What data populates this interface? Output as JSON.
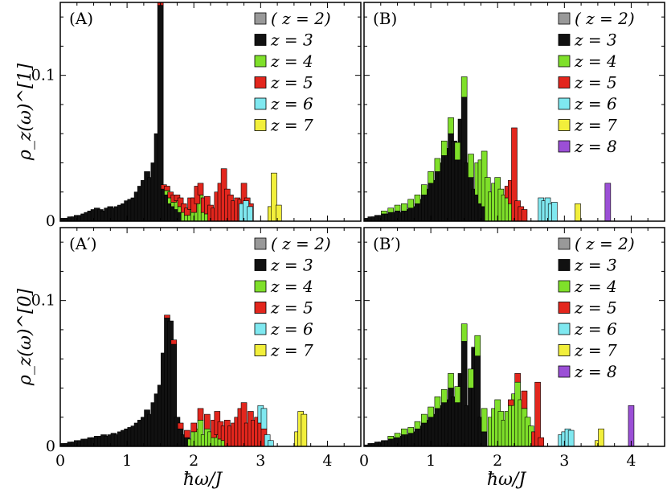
{
  "chart_data": [
    {
      "panel": "A",
      "type": "bar",
      "stacked": true,
      "title": "(A)",
      "ylabel": "ρ_z(ω)^[1]",
      "xlabel": "",
      "xlim": [
        0,
        4.5
      ],
      "ylim": [
        0,
        0.15
      ],
      "xticks": [],
      "yticks": [
        {
          "v": 0,
          "label": "0"
        },
        {
          "v": 0.1,
          "label": "0.1"
        }
      ],
      "legend": [
        {
          "label": "(  z = 2)",
          "color": "#999999"
        },
        {
          "label": "z = 3",
          "color": "#111111"
        },
        {
          "label": "z = 4",
          "color": "#7fe02a"
        },
        {
          "label": "z = 5",
          "color": "#e3261d"
        },
        {
          "label": "z = 6",
          "color": "#7fe8f0"
        },
        {
          "label": "z = 7",
          "color": "#f2ef3b"
        }
      ],
      "series": [
        {
          "name": "z = 3",
          "color": "#111111",
          "x": [
            0.05,
            0.1,
            0.15,
            0.2,
            0.25,
            0.3,
            0.35,
            0.4,
            0.45,
            0.5,
            0.55,
            0.6,
            0.65,
            0.7,
            0.75,
            0.8,
            0.85,
            0.9,
            0.95,
            1.0,
            1.05,
            1.1,
            1.15,
            1.2,
            1.25,
            1.3,
            1.35,
            1.4,
            1.45,
            1.5,
            1.55,
            1.6,
            1.65,
            1.7,
            1.75,
            1.8
          ],
          "values": [
            0.002,
            0.002,
            0.003,
            0.003,
            0.004,
            0.004,
            0.005,
            0.006,
            0.007,
            0.008,
            0.009,
            0.008,
            0.007,
            0.009,
            0.01,
            0.009,
            0.01,
            0.011,
            0.012,
            0.014,
            0.015,
            0.016,
            0.02,
            0.024,
            0.028,
            0.034,
            0.03,
            0.04,
            0.06,
            0.148,
            0.022,
            0.018,
            0.012,
            0.01,
            0.008,
            0.006
          ]
        },
        {
          "name": "z = 4",
          "color": "#7fe02a",
          "x": [
            1.6,
            1.65,
            1.7,
            1.75,
            1.8,
            1.85,
            1.9,
            1.95,
            2.0,
            2.05,
            2.1,
            2.15,
            2.2
          ],
          "values": [
            0.003,
            0.004,
            0.003,
            0.006,
            0.004,
            0.006,
            0.004,
            0.008,
            0.006,
            0.012,
            0.018,
            0.006,
            0.005
          ]
        },
        {
          "name": "z = 5",
          "color": "#e3261d",
          "x": [
            1.5,
            1.55,
            1.6,
            1.65,
            1.7,
            1.75,
            1.8,
            1.85,
            1.9,
            1.95,
            2.0,
            2.05,
            2.1,
            2.15,
            2.2,
            2.25,
            2.3,
            2.35,
            2.4,
            2.45,
            2.5,
            2.55,
            2.6,
            2.65,
            2.7,
            2.75,
            2.8,
            2.85
          ],
          "values": [
            0.002,
            0.003,
            0.003,
            0.004,
            0.005,
            0.004,
            0.006,
            0.006,
            0.005,
            0.008,
            0.01,
            0.012,
            0.008,
            0.01,
            0.012,
            0.011,
            0.009,
            0.02,
            0.026,
            0.036,
            0.022,
            0.018,
            0.014,
            0.016,
            0.015,
            0.026,
            0.016,
            0.012
          ]
        },
        {
          "name": "z = 6",
          "color": "#7fe8f0",
          "x": [
            2.72,
            2.78,
            2.84
          ],
          "values": [
            0.012,
            0.014,
            0.01
          ]
        },
        {
          "name": "z = 7",
          "color": "#f2ef3b",
          "x": [
            3.15,
            3.2,
            3.27
          ],
          "values": [
            0.01,
            0.033,
            0.011
          ]
        }
      ]
    },
    {
      "panel": "B",
      "type": "bar",
      "stacked": true,
      "title": "(B)",
      "ylabel": "",
      "xlabel": "",
      "xlim": [
        0,
        4.5
      ],
      "ylim": [
        0,
        0.15
      ],
      "xticks": [],
      "yticks": [],
      "legend": [
        {
          "label": "(  z = 2)",
          "color": "#999999"
        },
        {
          "label": "z = 3",
          "color": "#111111"
        },
        {
          "label": "z = 4",
          "color": "#7fe02a"
        },
        {
          "label": "z = 5",
          "color": "#e3261d"
        },
        {
          "label": "z = 6",
          "color": "#7fe8f0"
        },
        {
          "label": "z = 7",
          "color": "#f2ef3b"
        },
        {
          "label": "z = 8",
          "color": "#9b4fd6"
        }
      ],
      "series": [
        {
          "name": "z = 3",
          "color": "#111111",
          "x": [
            0.05,
            0.1,
            0.15,
            0.2,
            0.25,
            0.3,
            0.35,
            0.4,
            0.45,
            0.5,
            0.55,
            0.6,
            0.65,
            0.7,
            0.75,
            0.8,
            0.85,
            0.9,
            0.95,
            1.0,
            1.05,
            1.1,
            1.15,
            1.2,
            1.25,
            1.3,
            1.35,
            1.4,
            1.45,
            1.5,
            1.55,
            1.6,
            1.65,
            1.7,
            1.75,
            1.8
          ],
          "values": [
            0.002,
            0.003,
            0.003,
            0.004,
            0.004,
            0.005,
            0.005,
            0.006,
            0.006,
            0.007,
            0.006,
            0.007,
            0.008,
            0.009,
            0.01,
            0.012,
            0.015,
            0.018,
            0.022,
            0.026,
            0.028,
            0.034,
            0.04,
            0.045,
            0.05,
            0.06,
            0.055,
            0.042,
            0.07,
            0.085,
            0.04,
            0.03,
            0.022,
            0.018,
            0.012,
            0.01
          ]
        },
        {
          "name": "z = 4",
          "color": "#7fe02a",
          "x": [
            0.3,
            0.4,
            0.5,
            0.6,
            0.7,
            0.8,
            0.9,
            1.0,
            1.1,
            1.2,
            1.3,
            1.4,
            1.5,
            1.6,
            1.7,
            1.75,
            1.8,
            1.85,
            1.9,
            1.95,
            2.0,
            2.05,
            2.1,
            2.15,
            2.2
          ],
          "values": [
            0.002,
            0.003,
            0.004,
            0.005,
            0.006,
            0.006,
            0.007,
            0.008,
            0.009,
            0.01,
            0.011,
            0.012,
            0.014,
            0.016,
            0.022,
            0.03,
            0.038,
            0.03,
            0.02,
            0.026,
            0.03,
            0.022,
            0.018,
            0.016,
            0.012
          ]
        },
        {
          "name": "z = 5",
          "color": "#e3261d",
          "x": [
            2.15,
            2.2,
            2.25,
            2.3,
            2.35,
            2.4
          ],
          "values": [
            0.008,
            0.016,
            0.064,
            0.014,
            0.01,
            0.008
          ]
        },
        {
          "name": "z = 6",
          "color": "#7fe8f0",
          "x": [
            2.65,
            2.7,
            2.75,
            2.8,
            2.85
          ],
          "values": [
            0.016,
            0.014,
            0.016,
            0.012,
            0.013
          ]
        },
        {
          "name": "z = 7",
          "color": "#f2ef3b",
          "x": [
            3.2
          ],
          "values": [
            0.012
          ]
        },
        {
          "name": "z = 8",
          "color": "#9b4fd6",
          "x": [
            3.65
          ],
          "values": [
            0.026
          ]
        }
      ]
    },
    {
      "panel": "A'",
      "type": "bar",
      "stacked": true,
      "title": "(A′)",
      "ylabel": "ρ_z(ω)^[0]",
      "xlabel": "ħω/J",
      "xlim": [
        0,
        4.5
      ],
      "ylim": [
        0,
        0.15
      ],
      "xticks": [
        {
          "v": 0,
          "label": "0"
        },
        {
          "v": 1,
          "label": "1"
        },
        {
          "v": 2,
          "label": "2"
        },
        {
          "v": 3,
          "label": "3"
        },
        {
          "v": 4,
          "label": "4"
        }
      ],
      "yticks": [
        {
          "v": 0,
          "label": "0"
        },
        {
          "v": 0.1,
          "label": "0.1"
        }
      ],
      "legend": [
        {
          "label": "(  z = 2)",
          "color": "#999999"
        },
        {
          "label": "z = 3",
          "color": "#111111"
        },
        {
          "label": "z = 4",
          "color": "#7fe02a"
        },
        {
          "label": "z = 5",
          "color": "#e3261d"
        },
        {
          "label": "z = 6",
          "color": "#7fe8f0"
        },
        {
          "label": "z = 7",
          "color": "#f2ef3b"
        }
      ],
      "series": [
        {
          "name": "z = 3",
          "color": "#111111",
          "x": [
            0.05,
            0.1,
            0.15,
            0.2,
            0.25,
            0.3,
            0.35,
            0.4,
            0.45,
            0.5,
            0.55,
            0.6,
            0.65,
            0.7,
            0.75,
            0.8,
            0.85,
            0.9,
            0.95,
            1.0,
            1.05,
            1.1,
            1.15,
            1.2,
            1.25,
            1.3,
            1.35,
            1.4,
            1.45,
            1.5,
            1.55,
            1.6,
            1.65,
            1.7,
            1.75,
            1.8,
            1.85,
            1.9
          ],
          "values": [
            0.002,
            0.002,
            0.003,
            0.003,
            0.004,
            0.004,
            0.005,
            0.005,
            0.006,
            0.006,
            0.007,
            0.007,
            0.008,
            0.007,
            0.008,
            0.009,
            0.008,
            0.01,
            0.011,
            0.012,
            0.013,
            0.014,
            0.016,
            0.018,
            0.02,
            0.025,
            0.022,
            0.03,
            0.036,
            0.042,
            0.064,
            0.088,
            0.086,
            0.07,
            0.02,
            0.012,
            0.008,
            0.006
          ]
        },
        {
          "name": "z = 4",
          "color": "#7fe02a",
          "x": [
            1.95,
            2.0,
            2.05,
            2.1,
            2.15,
            2.2,
            2.25,
            2.3,
            2.35,
            2.4,
            2.45
          ],
          "values": [
            0.005,
            0.01,
            0.012,
            0.018,
            0.008,
            0.012,
            0.01,
            0.006,
            0.008,
            0.005,
            0.004
          ]
        },
        {
          "name": "z = 5",
          "color": "#e3261d",
          "x": [
            1.6,
            1.7,
            1.8,
            1.9,
            2.0,
            2.1,
            2.2,
            2.3,
            2.35,
            2.4,
            2.45,
            2.5,
            2.55,
            2.6,
            2.65,
            2.7,
            2.75,
            2.8,
            2.85,
            2.9,
            2.95,
            3.0,
            3.05
          ],
          "values": [
            0.002,
            0.003,
            0.004,
            0.005,
            0.006,
            0.008,
            0.01,
            0.012,
            0.016,
            0.012,
            0.01,
            0.018,
            0.014,
            0.016,
            0.02,
            0.026,
            0.03,
            0.016,
            0.024,
            0.018,
            0.02,
            0.016,
            0.012
          ]
        },
        {
          "name": "z = 6",
          "color": "#7fe8f0",
          "x": [
            3.0,
            3.05,
            3.1,
            3.15
          ],
          "values": [
            0.012,
            0.014,
            0.008,
            0.004
          ]
        },
        {
          "name": "z = 7",
          "color": "#f2ef3b",
          "x": [
            3.55,
            3.6,
            3.65
          ],
          "values": [
            0.01,
            0.024,
            0.022
          ]
        }
      ]
    },
    {
      "panel": "B'",
      "type": "bar",
      "stacked": true,
      "title": "(B′)",
      "ylabel": "",
      "xlabel": "ħω/J",
      "xlim": [
        0,
        4.5
      ],
      "ylim": [
        0,
        0.15
      ],
      "xticks": [
        {
          "v": 0,
          "label": "0"
        },
        {
          "v": 1,
          "label": "1"
        },
        {
          "v": 2,
          "label": "2"
        },
        {
          "v": 3,
          "label": "3"
        },
        {
          "v": 4,
          "label": "4"
        }
      ],
      "yticks": [],
      "legend": [
        {
          "label": "(  z = 2)",
          "color": "#999999"
        },
        {
          "label": "z = 3",
          "color": "#111111"
        },
        {
          "label": "z = 4",
          "color": "#7fe02a"
        },
        {
          "label": "z = 5",
          "color": "#e3261d"
        },
        {
          "label": "z = 6",
          "color": "#7fe8f0"
        },
        {
          "label": "z = 7",
          "color": "#f2ef3b"
        },
        {
          "label": "z = 8",
          "color": "#9b4fd6"
        }
      ],
      "series": [
        {
          "name": "z = 3",
          "color": "#111111",
          "x": [
            0.05,
            0.1,
            0.15,
            0.2,
            0.25,
            0.3,
            0.35,
            0.4,
            0.45,
            0.5,
            0.55,
            0.6,
            0.65,
            0.7,
            0.75,
            0.8,
            0.85,
            0.9,
            0.95,
            1.0,
            1.05,
            1.1,
            1.15,
            1.2,
            1.25,
            1.3,
            1.35,
            1.4,
            1.45,
            1.5,
            1.55,
            1.6,
            1.65,
            1.7,
            1.75,
            1.8
          ],
          "values": [
            0.001,
            0.002,
            0.002,
            0.003,
            0.003,
            0.004,
            0.004,
            0.005,
            0.006,
            0.006,
            0.007,
            0.008,
            0.008,
            0.009,
            0.01,
            0.012,
            0.014,
            0.016,
            0.018,
            0.02,
            0.022,
            0.026,
            0.028,
            0.03,
            0.032,
            0.04,
            0.034,
            0.03,
            0.05,
            0.072,
            0.028,
            0.04,
            0.068,
            0.062,
            0.02,
            0.01
          ]
        },
        {
          "name": "z = 4",
          "color": "#7fe02a",
          "x": [
            0.4,
            0.5,
            0.6,
            0.7,
            0.8,
            0.9,
            1.0,
            1.1,
            1.2,
            1.3,
            1.4,
            1.5,
            1.6,
            1.7,
            1.8,
            1.9,
            1.95,
            2.0,
            2.05,
            2.1,
            2.15,
            2.2,
            2.25,
            2.3,
            2.35,
            2.4,
            2.45,
            2.5
          ],
          "values": [
            0.002,
            0.003,
            0.004,
            0.004,
            0.005,
            0.006,
            0.007,
            0.008,
            0.009,
            0.01,
            0.011,
            0.012,
            0.013,
            0.014,
            0.016,
            0.02,
            0.026,
            0.032,
            0.024,
            0.018,
            0.024,
            0.028,
            0.036,
            0.044,
            0.032,
            0.026,
            0.02,
            0.014
          ]
        },
        {
          "name": "z = 5",
          "color": "#e3261d",
          "x": [
            2.2,
            2.3,
            2.4,
            2.55,
            2.6,
            2.65
          ],
          "values": [
            0.004,
            0.006,
            0.012,
            0.01,
            0.044,
            0.006
          ]
        },
        {
          "name": "z = 6",
          "color": "#7fe8f0",
          "x": [
            2.95,
            3.0,
            3.05,
            3.1
          ],
          "values": [
            0.008,
            0.01,
            0.012,
            0.011
          ]
        },
        {
          "name": "z = 7",
          "color": "#f2ef3b",
          "x": [
            3.5,
            3.55
          ],
          "values": [
            0.004,
            0.012
          ]
        },
        {
          "name": "z = 8",
          "color": "#9b4fd6",
          "x": [
            4.0
          ],
          "values": [
            0.028
          ]
        }
      ]
    }
  ]
}
